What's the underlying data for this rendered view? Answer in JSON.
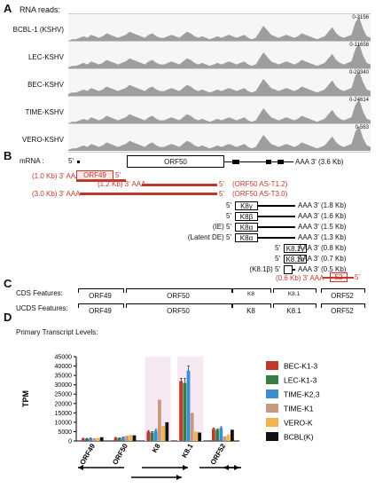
{
  "panelA": {
    "letter": "A",
    "title": "RNA reads:",
    "tracks": [
      {
        "name": "BCBL-1 (KSHV)",
        "scale": "0-3156"
      },
      {
        "name": "LEC-KSHV",
        "scale": "0-11658"
      },
      {
        "name": "BEC-KSHV",
        "scale": "0-20340"
      },
      {
        "name": "TIME-KSHV",
        "scale": "0-24614"
      },
      {
        "name": "VERO-KSHV",
        "scale": "0-563"
      }
    ]
  },
  "panelB": {
    "letter": "B",
    "mrna_label": "mRNA :",
    "orf50_five": "5'",
    "orf50_box": "ORF50",
    "orf50_three": "AAA 3' (3.6 Kb)",
    "orf49_size": "(1.0 Kb) 3' AAA",
    "orf49_box": "ORF49",
    "orf49_five": "5'",
    "as12_size": "(1.2 Kb) 3' AAA",
    "as12_five": "5'",
    "as12_name": "(ORF50 AS-T1.2)",
    "as30_size": "(3.0 Kb) 3' AAA",
    "as30_five": "5'",
    "as30_name": "(ORF50 AS-T3.0)",
    "k8_rows": [
      {
        "left": "5'",
        "box": "K8γ",
        "right": "AAA 3' (1.8 Kb)"
      },
      {
        "left": "5'",
        "box": "K8β",
        "right": "AAA 3' (1.6 Kb)"
      },
      {
        "left": "(IE) 5'",
        "box": "K8α",
        "right": "AAA 3' (1.5 Kb)"
      },
      {
        "left": "(Latent DE) 5'",
        "box": "K8α",
        "right": "AAA 3' (1.3 Kb)"
      },
      {
        "left": "5'",
        "box": "K8.1γ",
        "right": "AAA 3' (0.8 Kb)"
      },
      {
        "left": "5'",
        "box": "K8.1α",
        "right": "AAA 3' (0.7 Kb)"
      },
      {
        "left": "(K8.1β) 5'",
        "box": "",
        "right": "AAA 3' (0.5 Kb)"
      }
    ],
    "orf52_size": "(0.6 Kb) 3' AAA",
    "orf52_box": "52",
    "orf52_five": "5'"
  },
  "panelC": {
    "letter": "C",
    "cds_label": "CDS Features:",
    "ucds_label": "UCDS Features:",
    "cds": [
      "ORF49",
      "ORF50",
      "K8",
      "K8.1",
      "ORF52"
    ],
    "ucds": [
      "ORF49",
      "ORF50",
      "K8",
      "K8.1",
      "ORF52"
    ],
    "cds_inner_k8": "K8",
    "cds_inner_k81": "K8.1"
  },
  "panelD": {
    "letter": "D",
    "title": "Primary Transcript Levels:"
  },
  "chart_data": {
    "type": "bar",
    "title": "",
    "xlabel": "",
    "ylabel": "TPM",
    "ylim": [
      0,
      45000
    ],
    "yticks": [
      0,
      5000,
      10000,
      15000,
      20000,
      25000,
      30000,
      35000,
      40000,
      45000
    ],
    "ytick_labels": [
      "0",
      "5000",
      "10000",
      "15000",
      "20000",
      "25000",
      "30000",
      "35000",
      "40000",
      "45000"
    ],
    "categories": [
      "ORF49",
      "ORF50",
      "K8",
      "K8.1",
      "ORF52"
    ],
    "series": [
      {
        "name": "BEC-K1-3",
        "color": "#c0392b",
        "values": [
          1300,
          1700,
          5000,
          32000,
          6500
        ],
        "errors": [
          150,
          200,
          600,
          1500,
          500
        ]
      },
      {
        "name": "LEC-K1-3",
        "color": "#3a7d44",
        "values": [
          1200,
          1500,
          4500,
          31000,
          6000
        ],
        "errors": [
          150,
          200,
          500,
          2500,
          500
        ]
      },
      {
        "name": "TIME-K2,3",
        "color": "#3b8fd0",
        "values": [
          1400,
          1900,
          5500,
          37500,
          7000
        ],
        "errors": [
          150,
          200,
          700,
          2500,
          600
        ]
      },
      {
        "name": "TIME-K1",
        "color": "#c79a80",
        "values": [
          1500,
          2800,
          22000,
          15000,
          2500
        ],
        "errors": [
          0,
          0,
          0,
          0,
          0
        ]
      },
      {
        "name": "VERO-K",
        "color": "#f3b351",
        "values": [
          1600,
          3200,
          8000,
          5000,
          3500
        ],
        "errors": [
          0,
          0,
          0,
          0,
          0
        ]
      },
      {
        "name": "BCBL(K)",
        "color": "#111111",
        "values": [
          2000,
          3000,
          10000,
          4500,
          6000
        ],
        "errors": [
          0,
          0,
          0,
          0,
          0
        ]
      }
    ],
    "legend_position": "right",
    "grid": false
  }
}
